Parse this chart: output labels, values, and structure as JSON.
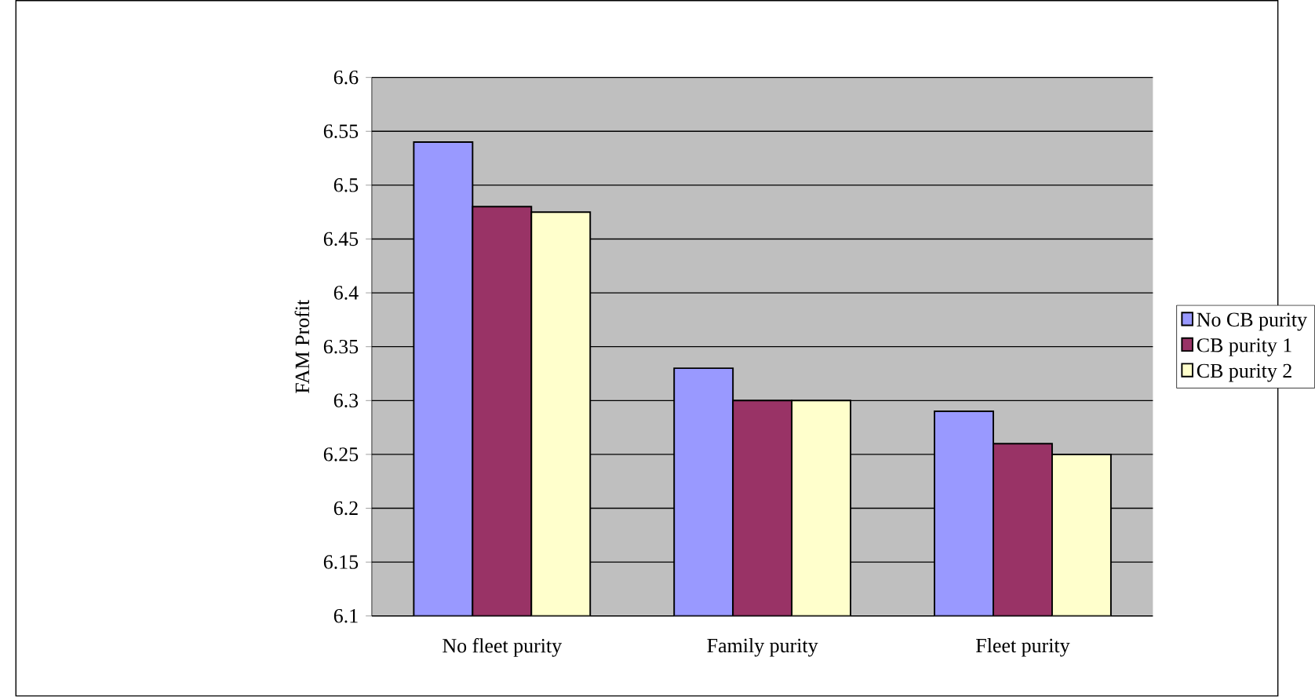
{
  "chart_data": {
    "type": "bar",
    "ylabel": "FAM Profit",
    "categories": [
      "No fleet purity",
      "Family purity",
      "Fleet purity"
    ],
    "series": [
      {
        "name": "No CB purity",
        "color": "#9999ff",
        "values": [
          6.54,
          6.33,
          6.29
        ]
      },
      {
        "name": "CB purity 1",
        "color": "#993366",
        "values": [
          6.48,
          6.3,
          6.26
        ]
      },
      {
        "name": "CB purity 2",
        "color": "#ffffcc",
        "values": [
          6.475,
          6.3,
          6.25
        ]
      }
    ],
    "ylim": [
      6.1,
      6.6
    ],
    "yticks": [
      6.1,
      6.15,
      6.2,
      6.25,
      6.3,
      6.35,
      6.4,
      6.45,
      6.5,
      6.55,
      6.6
    ],
    "grid": "y",
    "legend": "right"
  }
}
